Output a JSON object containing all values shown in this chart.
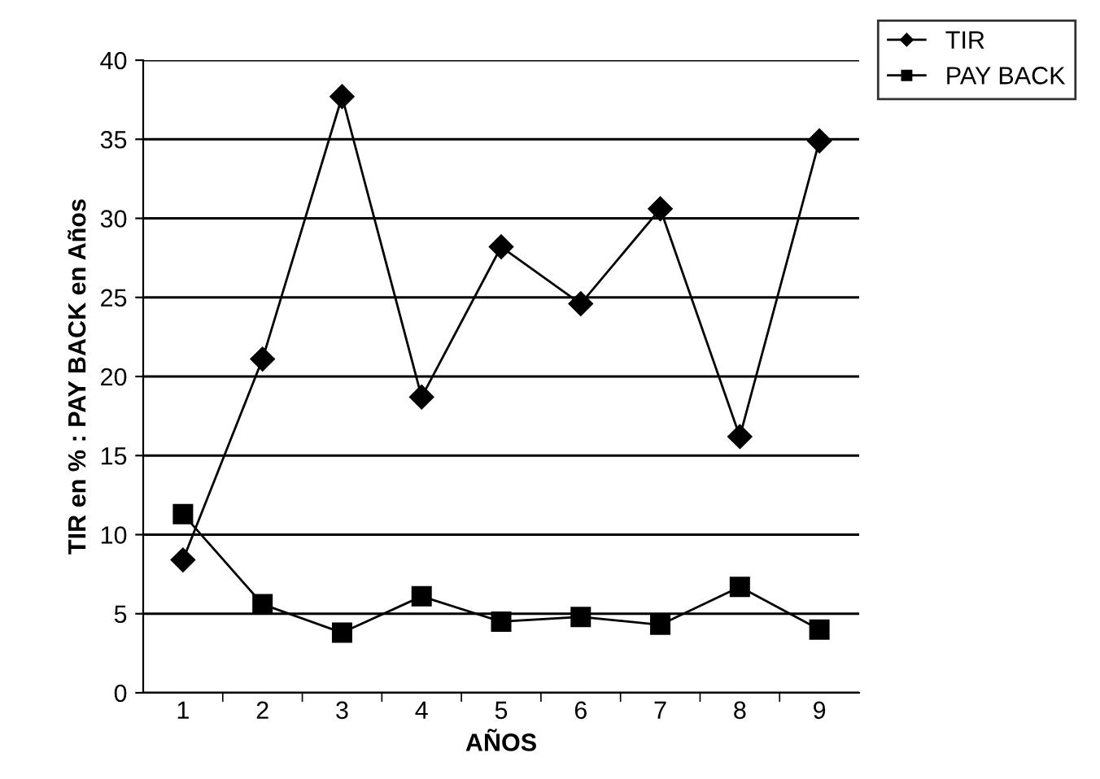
{
  "chart_data": {
    "type": "line",
    "xlabel": "AÑOS",
    "ylabel": "TIR en % : PAY BACK en Años",
    "categories": [
      "1",
      "2",
      "3",
      "4",
      "5",
      "6",
      "7",
      "8",
      "9"
    ],
    "series": [
      {
        "name": "TIR",
        "color": "#000000",
        "marker": "diamond",
        "values": [
          8.4,
          21.1,
          37.7,
          18.7,
          28.2,
          24.6,
          30.6,
          16.2,
          34.9
        ]
      },
      {
        "name": "PAY BACK",
        "color": "#000000",
        "marker": "square",
        "values": [
          11.3,
          5.6,
          3.8,
          6.1,
          4.5,
          4.8,
          4.3,
          6.7,
          4.0
        ]
      }
    ],
    "ylim": [
      0,
      40
    ],
    "yticks": [
      0,
      5,
      10,
      15,
      20,
      25,
      30,
      35,
      40
    ],
    "grid": "y",
    "legend": "top right",
    "line_style": "solid"
  }
}
